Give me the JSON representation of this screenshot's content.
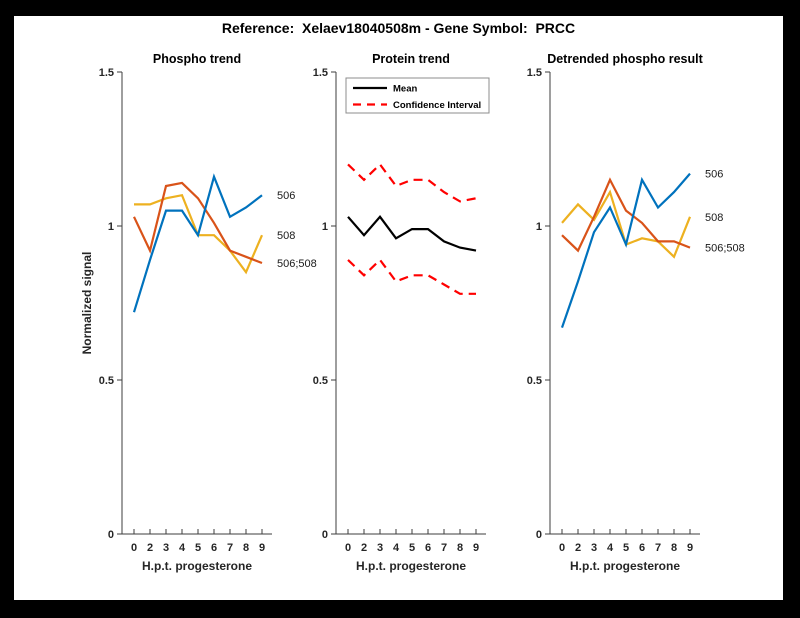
{
  "figure": {
    "title": "Reference:  Xelaev18040508m - Gene Symbol:  PRCC",
    "background_color": "#000000",
    "canvas_color": "#ffffff"
  },
  "chart_data": [
    {
      "type": "line",
      "title": "Phospho trend",
      "xlabel": "H.p.t. progesterone",
      "ylabel": "Normalized signal",
      "x_tick_labels": [
        "0",
        "2",
        "3",
        "4",
        "5",
        "6",
        "7",
        "8",
        "9"
      ],
      "y_ticks": [
        0,
        0.5,
        1,
        1.5
      ],
      "y_tick_labels": [
        "0",
        "0.5",
        "1",
        "1.5"
      ],
      "ylim": [
        0,
        1.5
      ],
      "grid": false,
      "series": [
        {
          "name": "508",
          "color": "#EDB120",
          "dash": "solid",
          "end_label": "508",
          "values": [
            1.07,
            1.07,
            1.09,
            1.1,
            0.97,
            0.97,
            0.92,
            0.85,
            0.97
          ]
        },
        {
          "name": "506;508",
          "color": "#D95319",
          "dash": "solid",
          "end_label": "506;508",
          "values": [
            1.03,
            0.92,
            1.13,
            1.14,
            1.09,
            1.01,
            0.92,
            0.9,
            0.88
          ]
        },
        {
          "name": "506",
          "color": "#0072BD",
          "dash": "solid",
          "end_label": "506",
          "values": [
            0.72,
            0.89,
            1.05,
            1.05,
            0.97,
            1.16,
            1.03,
            1.06,
            1.1
          ]
        }
      ]
    },
    {
      "type": "line",
      "title": "Protein trend",
      "xlabel": "H.p.t. progesterone",
      "ylabel": "",
      "x_tick_labels": [
        "0",
        "2",
        "3",
        "4",
        "5",
        "6",
        "7",
        "8",
        "9"
      ],
      "y_ticks": [
        0,
        0.5,
        1,
        1.5
      ],
      "y_tick_labels": [
        "0",
        "0.5",
        "1",
        "1.5"
      ],
      "ylim": [
        0,
        1.5
      ],
      "grid": false,
      "legend": {
        "position": "top",
        "entries": [
          {
            "label": "Mean",
            "color": "#000000",
            "dash": "solid"
          },
          {
            "label": "Confidence Interval",
            "color": "#FF0000",
            "dash": "dashed"
          }
        ]
      },
      "series": [
        {
          "name": "Mean",
          "color": "#000000",
          "dash": "solid",
          "values": [
            1.03,
            0.97,
            1.03,
            0.96,
            0.99,
            0.99,
            0.95,
            0.93,
            0.92
          ]
        },
        {
          "name": "Confidence Interval upper",
          "color": "#FF0000",
          "dash": "dashed",
          "values": [
            1.2,
            1.15,
            1.2,
            1.13,
            1.15,
            1.15,
            1.11,
            1.08,
            1.09
          ]
        },
        {
          "name": "Confidence Interval lower",
          "color": "#FF0000",
          "dash": "dashed",
          "values": [
            0.89,
            0.84,
            0.89,
            0.82,
            0.84,
            0.84,
            0.81,
            0.78,
            0.78
          ]
        }
      ]
    },
    {
      "type": "line",
      "title": "Detrended phospho result",
      "xlabel": "H.p.t. progesterone",
      "ylabel": "",
      "x_tick_labels": [
        "0",
        "2",
        "3",
        "4",
        "5",
        "6",
        "7",
        "8",
        "9"
      ],
      "y_ticks": [
        0,
        0.5,
        1,
        1.5
      ],
      "y_tick_labels": [
        "0",
        "0.5",
        "1",
        "1.5"
      ],
      "ylim": [
        0,
        1.5
      ],
      "grid": false,
      "series": [
        {
          "name": "508",
          "color": "#EDB120",
          "dash": "solid",
          "end_label": "508",
          "values": [
            1.01,
            1.07,
            1.02,
            1.11,
            0.94,
            0.96,
            0.95,
            0.9,
            1.03
          ]
        },
        {
          "name": "506;508",
          "color": "#D95319",
          "dash": "solid",
          "end_label": "506;508",
          "values": [
            0.97,
            0.92,
            1.03,
            1.15,
            1.05,
            1.01,
            0.95,
            0.95,
            0.93
          ]
        },
        {
          "name": "506",
          "color": "#0072BD",
          "dash": "solid",
          "end_label": "506",
          "values": [
            0.67,
            0.82,
            0.98,
            1.06,
            0.94,
            1.15,
            1.06,
            1.11,
            1.17
          ]
        }
      ]
    }
  ]
}
